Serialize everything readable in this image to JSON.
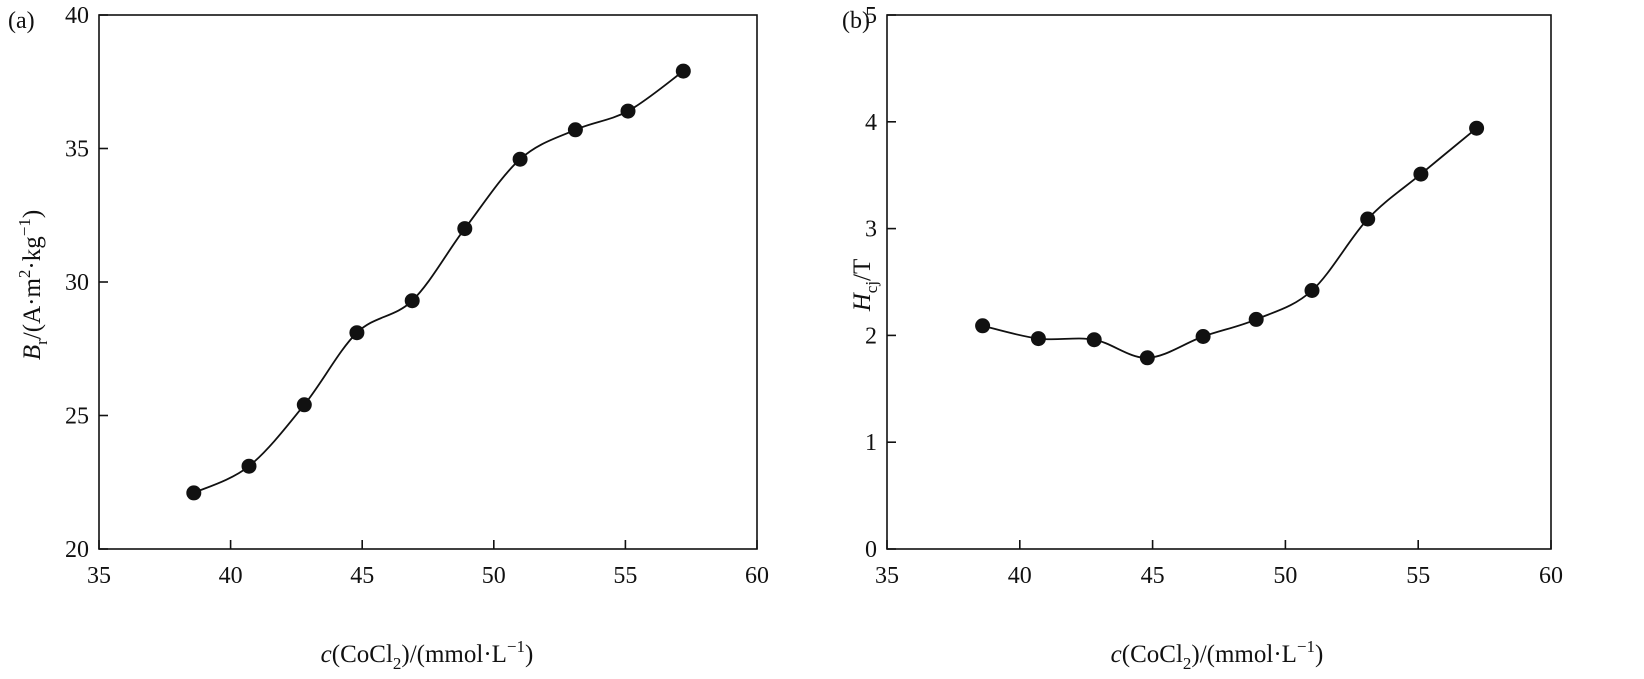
{
  "chart_data": [
    {
      "type": "line",
      "panel_label": "(a)",
      "x": [
        38.6,
        40.7,
        42.8,
        44.8,
        46.9,
        48.9,
        51.0,
        53.1,
        55.1,
        57.2
      ],
      "series": [
        {
          "values": [
            22.1,
            23.1,
            25.4,
            28.1,
            29.3,
            32.0,
            34.6,
            35.7,
            36.4,
            37.9
          ]
        }
      ],
      "xlim": [
        35,
        60
      ],
      "ylim": [
        20,
        40
      ],
      "xticks": [
        35,
        40,
        45,
        50,
        55,
        60
      ],
      "yticks": [
        20,
        25,
        30,
        35,
        40
      ],
      "xlabel": {
        "italic": "c",
        "pre": "(CoCl",
        "sub": "2",
        "mid": ")/(mmol·L",
        "sup": "−1",
        "post": ")"
      },
      "ylabel": {
        "italic": "B",
        "sub": "r",
        "pre": "/(A·m",
        "sup": "2",
        "mid": "·kg",
        "sup2": "−1",
        "post": ")"
      },
      "grid": false
    },
    {
      "type": "line",
      "panel_label": "(b)",
      "x": [
        38.6,
        40.7,
        42.8,
        44.8,
        46.9,
        48.9,
        51.0,
        53.1,
        55.1,
        57.2
      ],
      "series": [
        {
          "values": [
            2.09,
            1.97,
            1.96,
            1.79,
            1.99,
            2.15,
            2.42,
            3.09,
            3.51,
            3.94
          ]
        }
      ],
      "xlim": [
        35,
        60
      ],
      "ylim": [
        0,
        5
      ],
      "xticks": [
        35,
        40,
        45,
        50,
        55,
        60
      ],
      "yticks": [
        0,
        1,
        2,
        3,
        4,
        5
      ],
      "xlabel": {
        "italic": "c",
        "pre": "(CoCl",
        "sub": "2",
        "mid": ")/(mmol·L",
        "sup": "−1",
        "post": ")"
      },
      "ylabel": {
        "italic": "H",
        "sub": "cj",
        "post": "/T"
      },
      "grid": false
    }
  ]
}
